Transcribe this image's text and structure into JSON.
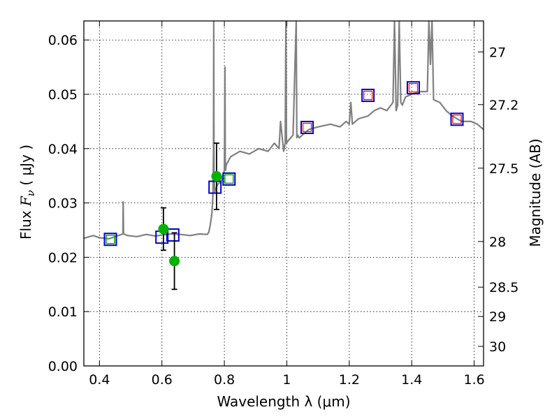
{
  "chart_data": {
    "type": "scatter",
    "xlabel": "Wavelength  λ (μm)",
    "ylabel_parts": {
      "prefix": "Flux  ",
      "symbol": "F",
      "subscript": "ν",
      "unit": "  ( μJy )"
    },
    "y2label": "Magnitude (AB)",
    "xlim": [
      0.35,
      1.63
    ],
    "ylim": [
      0.0,
      0.0635
    ],
    "grid": true,
    "x_ticks": [
      0.4,
      0.6,
      0.8,
      1.0,
      1.2,
      1.4,
      1.6
    ],
    "x_tick_labels": [
      "0.4",
      "0.6",
      "0.8",
      "1",
      "1.2",
      "1.4",
      "1.6"
    ],
    "y_ticks": [
      0.0,
      0.01,
      0.02,
      0.03,
      0.04,
      0.05,
      0.06
    ],
    "y_tick_labels": [
      "0.00",
      "0.01",
      "0.02",
      "0.03",
      "0.04",
      "0.05",
      "0.06"
    ],
    "y2_ticks": [
      {
        "label": "27",
        "flux": 0.0578
      },
      {
        "label": "27.2",
        "flux": 0.0481
      },
      {
        "label": "27.5",
        "flux": 0.0364
      },
      {
        "label": "28",
        "flux": 0.0229
      },
      {
        "label": "28.5",
        "flux": 0.0145
      },
      {
        "label": "29",
        "flux": 0.0091
      },
      {
        "label": "30",
        "flux": 0.0036
      }
    ],
    "colors": {
      "model_spectrum": "#808080",
      "model_photometry": "#0000cc",
      "observed_detection": "#00b200",
      "observed_nir": "#ff0000",
      "error_bar": "#000000"
    },
    "series": [
      {
        "type": "line",
        "x": [
          0.35,
          0.38,
          0.4,
          0.43,
          0.46,
          0.475,
          0.476,
          0.477,
          0.49,
          0.52,
          0.55,
          0.58,
          0.6,
          0.63,
          0.66,
          0.69,
          0.72,
          0.745,
          0.75,
          0.755,
          0.76,
          0.763,
          0.765,
          0.766,
          0.767,
          0.769,
          0.775,
          0.78,
          0.79,
          0.8,
          0.802,
          0.803,
          0.804,
          0.806,
          0.82,
          0.85,
          0.88,
          0.91,
          0.94,
          0.96,
          0.975,
          0.98,
          0.99,
          0.995,
          0.997,
          0.999,
          1.005,
          1.02,
          1.03,
          1.032,
          1.035,
          1.04,
          1.07,
          1.1,
          1.14,
          1.17,
          1.19,
          1.2,
          1.205,
          1.21,
          1.23,
          1.26,
          1.28,
          1.3,
          1.32,
          1.34,
          1.345,
          1.35,
          1.355,
          1.36,
          1.365,
          1.37,
          1.38,
          1.4,
          1.43,
          1.45,
          1.455,
          1.46,
          1.465,
          1.47,
          1.49,
          1.51,
          1.53,
          1.56,
          1.59,
          1.61,
          1.63
        ],
        "y": [
          0.0235,
          0.024,
          0.0236,
          0.0234,
          0.024,
          0.0243,
          0.0302,
          0.0243,
          0.024,
          0.0238,
          0.0242,
          0.0239,
          0.0241,
          0.0243,
          0.0242,
          0.024,
          0.0243,
          0.0242,
          0.0246,
          0.026,
          0.028,
          0.031,
          0.039,
          0.0635,
          0.036,
          0.032,
          0.033,
          0.0335,
          0.034,
          0.036,
          0.055,
          0.0375,
          0.036,
          0.037,
          0.0385,
          0.0395,
          0.039,
          0.04,
          0.0395,
          0.041,
          0.04,
          0.045,
          0.0395,
          0.041,
          0.0635,
          0.041,
          0.0415,
          0.0425,
          0.0635,
          0.042,
          0.0425,
          0.042,
          0.0435,
          0.044,
          0.0445,
          0.044,
          0.045,
          0.0445,
          0.0485,
          0.0445,
          0.0455,
          0.046,
          0.047,
          0.0475,
          0.047,
          0.0485,
          0.0635,
          0.047,
          0.048,
          0.0635,
          0.0485,
          0.048,
          0.0495,
          0.05,
          0.0505,
          0.0505,
          0.0635,
          0.0555,
          0.0635,
          0.049,
          0.0485,
          0.047,
          0.046,
          0.045,
          0.045,
          0.0445,
          0.0435
        ]
      },
      {
        "type": "model_photometry",
        "x": [
          0.435,
          0.6,
          0.635,
          0.77,
          0.815,
          1.065,
          1.26,
          1.405,
          1.545
        ],
        "y": [
          0.0233,
          0.0237,
          0.0241,
          0.0329,
          0.0344,
          0.0439,
          0.0498,
          0.0512,
          0.0454
        ]
      },
      {
        "type": "observed_open_squares",
        "x": [
          0.435,
          0.815
        ],
        "y": [
          0.0233,
          0.0344
        ]
      },
      {
        "type": "observed_nir",
        "x": [
          1.065,
          1.26,
          1.405,
          1.545
        ],
        "y": [
          0.0439,
          0.0498,
          0.0512,
          0.0454
        ]
      },
      {
        "type": "observed_with_errors",
        "x": [
          0.605,
          0.64,
          0.775
        ],
        "y": [
          0.0252,
          0.0193,
          0.0349
        ],
        "yerr": [
          0.0039,
          0.0052,
          0.0061
        ]
      }
    ]
  }
}
